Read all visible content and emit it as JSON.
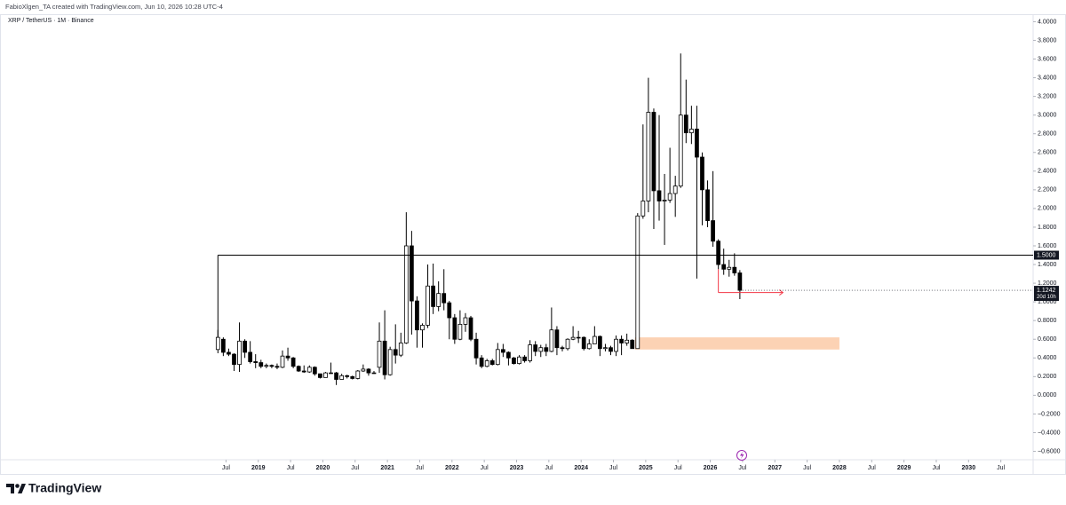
{
  "header": {
    "credit": "FabioXlgen_TA created with TradingView.com, Jun 10, 2026 10:28 UTC-4"
  },
  "footer": {
    "brand": "TradingView"
  },
  "chart_data": {
    "type": "candlestick",
    "title": "XRP / TetherUS · 1M · Binance",
    "up_color": "#ffffff",
    "down_color": "#000000",
    "border_color": "#000000",
    "x": [
      "2018-05",
      "2018-06",
      "2018-07",
      "2018-08",
      "2018-09",
      "2018-10",
      "2018-11",
      "2018-12",
      "2019-01",
      "2019-02",
      "2019-03",
      "2019-04",
      "2019-05",
      "2019-06",
      "2019-07",
      "2019-08",
      "2019-09",
      "2019-10",
      "2019-11",
      "2019-12",
      "2020-01",
      "2020-02",
      "2020-03",
      "2020-04",
      "2020-05",
      "2020-06",
      "2020-07",
      "2020-08",
      "2020-09",
      "2020-10",
      "2020-11",
      "2020-12",
      "2021-01",
      "2021-02",
      "2021-03",
      "2021-04",
      "2021-05",
      "2021-06",
      "2021-07",
      "2021-08",
      "2021-09",
      "2021-10",
      "2021-11",
      "2021-12",
      "2022-01",
      "2022-02",
      "2022-03",
      "2022-04",
      "2022-05",
      "2022-06",
      "2022-07",
      "2022-08",
      "2022-09",
      "2022-10",
      "2022-11",
      "2022-12",
      "2023-01",
      "2023-02",
      "2023-03",
      "2023-04",
      "2023-05",
      "2023-06",
      "2023-07",
      "2023-08",
      "2023-09",
      "2023-10",
      "2023-11",
      "2023-12",
      "2024-01",
      "2024-02",
      "2024-03",
      "2024-04",
      "2024-05",
      "2024-06",
      "2024-07",
      "2024-08",
      "2024-09",
      "2024-10",
      "2024-11",
      "2024-12",
      "2025-01",
      "2025-02",
      "2025-03",
      "2025-04",
      "2025-05",
      "2025-06",
      "2025-07",
      "2025-08",
      "2025-09",
      "2025-10",
      "2025-11",
      "2025-12",
      "2026-01",
      "2026-02",
      "2026-03",
      "2026-04",
      "2026-05",
      "2026-06"
    ],
    "open": [
      0.49,
      0.6,
      0.46,
      0.44,
      0.33,
      0.58,
      0.46,
      0.36,
      0.35,
      0.31,
      0.32,
      0.31,
      0.3,
      0.42,
      0.4,
      0.31,
      0.26,
      0.25,
      0.3,
      0.23,
      0.19,
      0.24,
      0.24,
      0.17,
      0.21,
      0.2,
      0.18,
      0.26,
      0.28,
      0.24,
      0.3,
      0.58,
      0.22,
      0.49,
      0.43,
      0.56,
      1.6,
      1.01,
      0.7,
      0.75,
      1.17,
      0.95,
      1.09,
      0.99,
      0.83,
      0.6,
      0.76,
      0.83,
      0.6,
      0.4,
      0.31,
      0.37,
      0.33,
      0.49,
      0.46,
      0.4,
      0.34,
      0.41,
      0.37,
      0.54,
      0.47,
      0.51,
      0.47,
      0.7,
      0.51,
      0.5,
      0.6,
      0.62,
      0.62,
      0.5,
      0.55,
      0.63,
      0.5,
      0.51,
      0.47,
      0.6,
      0.56,
      0.59,
      0.5,
      1.92,
      2.08,
      3.03,
      2.19,
      2.08,
      2.09,
      2.16,
      2.24,
      3.0,
      2.81,
      2.85,
      2.55,
      2.2,
      1.87,
      1.65,
      1.4,
      1.35,
      1.37,
      1.31
    ],
    "high": [
      0.7,
      0.62,
      0.5,
      0.45,
      0.78,
      0.6,
      0.58,
      0.44,
      0.38,
      0.34,
      0.33,
      0.34,
      0.48,
      0.51,
      0.41,
      0.32,
      0.32,
      0.32,
      0.31,
      0.23,
      0.25,
      0.35,
      0.25,
      0.23,
      0.22,
      0.21,
      0.27,
      0.33,
      0.29,
      0.26,
      0.78,
      0.91,
      0.52,
      0.76,
      0.67,
      1.96,
      1.76,
      1.06,
      0.77,
      1.4,
      1.41,
      1.22,
      1.35,
      1.01,
      0.87,
      0.91,
      0.88,
      0.85,
      0.67,
      0.43,
      0.39,
      0.39,
      0.56,
      0.55,
      0.47,
      0.41,
      0.43,
      0.43,
      0.59,
      0.58,
      0.54,
      0.55,
      0.94,
      0.74,
      0.53,
      0.61,
      0.74,
      0.69,
      0.63,
      0.6,
      0.74,
      0.64,
      0.55,
      0.53,
      0.64,
      0.64,
      0.66,
      0.6,
      1.95,
      2.9,
      3.4,
      3.07,
      3.0,
      2.37,
      2.65,
      2.35,
      3.66,
      3.38,
      3.1,
      3.1,
      2.6,
      2.3,
      2.4,
      1.67,
      1.57,
      1.45,
      1.52,
      1.34
    ],
    "low": [
      0.45,
      0.42,
      0.42,
      0.26,
      0.25,
      0.4,
      0.34,
      0.29,
      0.29,
      0.29,
      0.29,
      0.28,
      0.29,
      0.37,
      0.29,
      0.25,
      0.24,
      0.24,
      0.21,
      0.18,
      0.19,
      0.23,
      0.11,
      0.17,
      0.18,
      0.17,
      0.17,
      0.25,
      0.21,
      0.23,
      0.24,
      0.17,
      0.21,
      0.34,
      0.41,
      0.55,
      0.65,
      0.51,
      0.51,
      0.72,
      0.87,
      0.9,
      0.91,
      0.6,
      0.55,
      0.59,
      0.68,
      0.58,
      0.33,
      0.29,
      0.3,
      0.32,
      0.32,
      0.41,
      0.32,
      0.33,
      0.33,
      0.35,
      0.35,
      0.42,
      0.41,
      0.42,
      0.46,
      0.43,
      0.47,
      0.48,
      0.59,
      0.56,
      0.48,
      0.49,
      0.55,
      0.42,
      0.47,
      0.43,
      0.42,
      0.43,
      0.53,
      0.5,
      0.5,
      1.89,
      1.96,
      1.78,
      1.87,
      1.61,
      2.06,
      1.91,
      2.22,
      2.7,
      2.69,
      1.25,
      1.82,
      1.8,
      1.59,
      1.35,
      1.29,
      1.27,
      1.28,
      1.03
    ],
    "close": [
      0.62,
      0.46,
      0.44,
      0.33,
      0.58,
      0.46,
      0.36,
      0.35,
      0.31,
      0.32,
      0.31,
      0.3,
      0.42,
      0.4,
      0.31,
      0.26,
      0.25,
      0.3,
      0.23,
      0.19,
      0.24,
      0.24,
      0.17,
      0.21,
      0.2,
      0.18,
      0.26,
      0.28,
      0.24,
      0.24,
      0.58,
      0.22,
      0.49,
      0.43,
      0.56,
      1.6,
      1.01,
      0.7,
      0.75,
      1.17,
      0.95,
      1.09,
      0.99,
      0.83,
      0.6,
      0.76,
      0.83,
      0.6,
      0.4,
      0.31,
      0.37,
      0.33,
      0.49,
      0.46,
      0.4,
      0.34,
      0.41,
      0.37,
      0.54,
      0.47,
      0.51,
      0.47,
      0.7,
      0.51,
      0.5,
      0.6,
      0.62,
      0.62,
      0.5,
      0.55,
      0.63,
      0.5,
      0.51,
      0.47,
      0.6,
      0.56,
      0.59,
      0.5,
      1.92,
      2.08,
      3.03,
      2.19,
      2.08,
      2.09,
      2.16,
      2.24,
      3.0,
      2.81,
      2.85,
      2.55,
      2.2,
      1.87,
      1.65,
      1.4,
      1.35,
      1.37,
      1.31,
      1.1242
    ],
    "last_price": {
      "value": 1.1242,
      "label": "1.1242"
    },
    "countdown": "20d 10h",
    "level": {
      "value": 1.5,
      "label": "1.5000",
      "from": "2018-05",
      "line_color": "#000000"
    },
    "zone": {
      "from": "2024-11",
      "to": "2028-01",
      "low": 0.49,
      "high": 0.62,
      "color": "#fcd2b4"
    },
    "target_arrow": {
      "from": "2026-02",
      "to": "2027-02",
      "value": 1.1,
      "color": "#f23645"
    },
    "xlim": [
      "2015-01",
      "2030-12"
    ],
    "ylim": [
      -0.69,
      4.08
    ],
    "xticks": [
      {
        "value": "2018-07",
        "label": "Jul"
      },
      {
        "value": "2019-01",
        "label": "2019"
      },
      {
        "value": "2019-07",
        "label": "Jul"
      },
      {
        "value": "2020-01",
        "label": "2020"
      },
      {
        "value": "2020-07",
        "label": "Jul"
      },
      {
        "value": "2021-01",
        "label": "2021"
      },
      {
        "value": "2021-07",
        "label": "Jul"
      },
      {
        "value": "2022-01",
        "label": "2022"
      },
      {
        "value": "2022-07",
        "label": "Jul"
      },
      {
        "value": "2023-01",
        "label": "2023"
      },
      {
        "value": "2023-07",
        "label": "Jul"
      },
      {
        "value": "2024-01",
        "label": "2024"
      },
      {
        "value": "2024-07",
        "label": "Jul"
      },
      {
        "value": "2025-01",
        "label": "2025"
      },
      {
        "value": "2025-07",
        "label": "Jul"
      },
      {
        "value": "2026-01",
        "label": "2026"
      },
      {
        "value": "2026-07",
        "label": "Jul"
      },
      {
        "value": "2027-01",
        "label": "2027"
      },
      {
        "value": "2027-07",
        "label": "Jul"
      },
      {
        "value": "2028-01",
        "label": "2028"
      },
      {
        "value": "2028-07",
        "label": "Jul"
      },
      {
        "value": "2029-01",
        "label": "2029"
      },
      {
        "value": "2029-07",
        "label": "Jul"
      },
      {
        "value": "2030-01",
        "label": "2030"
      },
      {
        "value": "2030-07",
        "label": "Jul"
      }
    ],
    "yticks": [
      {
        "value": 4.0,
        "label": "4.0000"
      },
      {
        "value": 3.8,
        "label": "3.8000"
      },
      {
        "value": 3.6,
        "label": "3.6000"
      },
      {
        "value": 3.4,
        "label": "3.4000"
      },
      {
        "value": 3.2,
        "label": "3.2000"
      },
      {
        "value": 3.0,
        "label": "3.0000"
      },
      {
        "value": 2.8,
        "label": "2.8000"
      },
      {
        "value": 2.6,
        "label": "2.6000"
      },
      {
        "value": 2.4,
        "label": "2.4000"
      },
      {
        "value": 2.2,
        "label": "2.2000"
      },
      {
        "value": 2.0,
        "label": "2.0000"
      },
      {
        "value": 1.8,
        "label": "1.8000"
      },
      {
        "value": 1.6,
        "label": "1.6000"
      },
      {
        "value": 1.4,
        "label": "1.4000"
      },
      {
        "value": 1.2,
        "label": "1.2000"
      },
      {
        "value": 1.0,
        "label": "1.0000"
      },
      {
        "value": 0.8,
        "label": "0.8000"
      },
      {
        "value": 0.6,
        "label": "0.6000"
      },
      {
        "value": 0.4,
        "label": "0.4000"
      },
      {
        "value": 0.2,
        "label": "0.2000"
      },
      {
        "value": 0,
        "label": "0.0000"
      },
      {
        "value": -0.2,
        "label": "−0.2000"
      },
      {
        "value": -0.4,
        "label": "−0.4000"
      },
      {
        "value": -0.6,
        "label": "−0.6000"
      }
    ],
    "grid": false
  }
}
